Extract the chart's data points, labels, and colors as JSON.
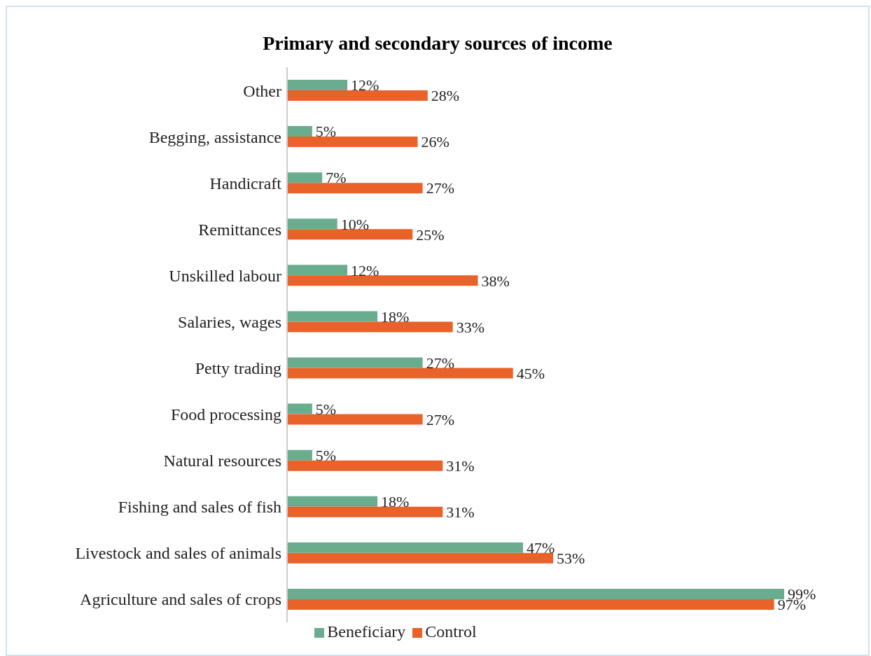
{
  "chart_data": {
    "type": "bar",
    "orientation": "horizontal",
    "title": "Primary and secondary sources of income",
    "categories": [
      "Other",
      "Begging, assistance",
      "Handicraft",
      "Remittances",
      "Unskilled labour",
      "Salaries, wages",
      "Petty trading",
      "Food processing",
      "Natural resources",
      "Fishing and sales of fish",
      "Livestock and sales of animals",
      "Agriculture and sales of crops"
    ],
    "series": [
      {
        "name": "Beneficiary",
        "color": "#6aad8e",
        "values": [
          12,
          5,
          7,
          10,
          12,
          18,
          27,
          5,
          5,
          18,
          47,
          99
        ],
        "value_labels": [
          "12%",
          "5%",
          "7%",
          "10%",
          "12%",
          "18%",
          "27%",
          "5%",
          "5%",
          "18%",
          "47%",
          "99%"
        ]
      },
      {
        "name": "Control",
        "color": "#e8622a",
        "values": [
          28,
          26,
          27,
          25,
          38,
          33,
          45,
          27,
          31,
          31,
          53,
          97
        ],
        "value_labels": [
          "28%",
          "26%",
          "27%",
          "25%",
          "38%",
          "33%",
          "45%",
          "27%",
          "31%",
          "31%",
          "53%",
          "97%"
        ]
      }
    ],
    "legend": "bottom",
    "grid": false
  }
}
